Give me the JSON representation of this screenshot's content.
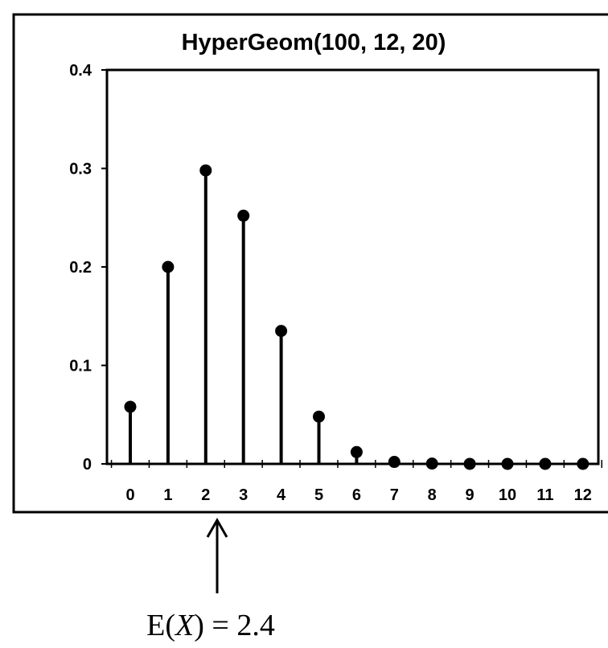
{
  "chart_data": {
    "type": "stem",
    "title": "HyperGeom(100, 12, 20)",
    "x": [
      0,
      1,
      2,
      3,
      4,
      5,
      6,
      7,
      8,
      9,
      10,
      11,
      12
    ],
    "values": [
      0.058,
      0.2,
      0.298,
      0.252,
      0.135,
      0.048,
      0.012,
      0.002,
      0.0003,
      3e-05,
      2e-06,
      1e-07,
      2e-09
    ],
    "x_tick_labels": [
      "0",
      "1",
      "2",
      "3",
      "4",
      "5",
      "6",
      "7",
      "8",
      "9",
      "10",
      "11",
      "12"
    ],
    "y_ticks": [
      0,
      0.1,
      0.2,
      0.3,
      0.4
    ],
    "y_tick_labels": [
      "0",
      "0.1",
      "0.2",
      "0.3",
      "0.4"
    ],
    "ylim": [
      0,
      0.4
    ],
    "xlabel": "",
    "ylabel": "",
    "grid": false,
    "legend": "none",
    "annotation": {
      "prefix": "E(",
      "variable": "X",
      "suffix": ") = 2.4",
      "x_value": 2.4
    }
  }
}
